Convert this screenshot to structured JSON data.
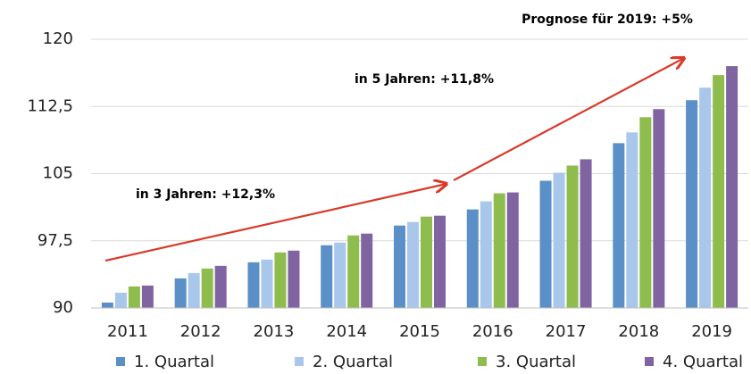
{
  "chart_data": {
    "type": "bar",
    "categories": [
      "2011",
      "2012",
      "2013",
      "2014",
      "2015",
      "2016",
      "2017",
      "2018",
      "2019"
    ],
    "series": [
      {
        "name": "1. Quartal",
        "color": "#5b8fc7",
        "values": [
          90.6,
          93.3,
          95.1,
          97.0,
          99.2,
          101.0,
          104.2,
          108.4,
          113.2
        ]
      },
      {
        "name": "2. Quartal",
        "color": "#a9c7ea",
        "values": [
          91.7,
          93.9,
          95.4,
          97.3,
          99.6,
          101.9,
          105.1,
          109.6,
          114.6
        ]
      },
      {
        "name": "3. Quartal",
        "color": "#8ebd4d",
        "values": [
          92.4,
          94.4,
          96.2,
          98.1,
          100.2,
          102.8,
          105.9,
          111.3,
          116.0
        ]
      },
      {
        "name": "4. Quartal",
        "color": "#8064a2",
        "values": [
          92.5,
          94.7,
          96.4,
          98.3,
          100.3,
          102.9,
          106.6,
          112.2,
          117.0
        ]
      }
    ],
    "ylim": [
      90,
      120
    ],
    "yticks": [
      90,
      {
        "value": 97.5,
        "label": "97,5"
      },
      105,
      {
        "value": 112.5,
        "label": "112,5"
      },
      120
    ],
    "grid": true,
    "legend": "bottom",
    "annotations": [
      "Prognose für 2019: +5%",
      "in 5 Jahren: +11,8%",
      "in 3 Jahren: +12,3%"
    ]
  }
}
